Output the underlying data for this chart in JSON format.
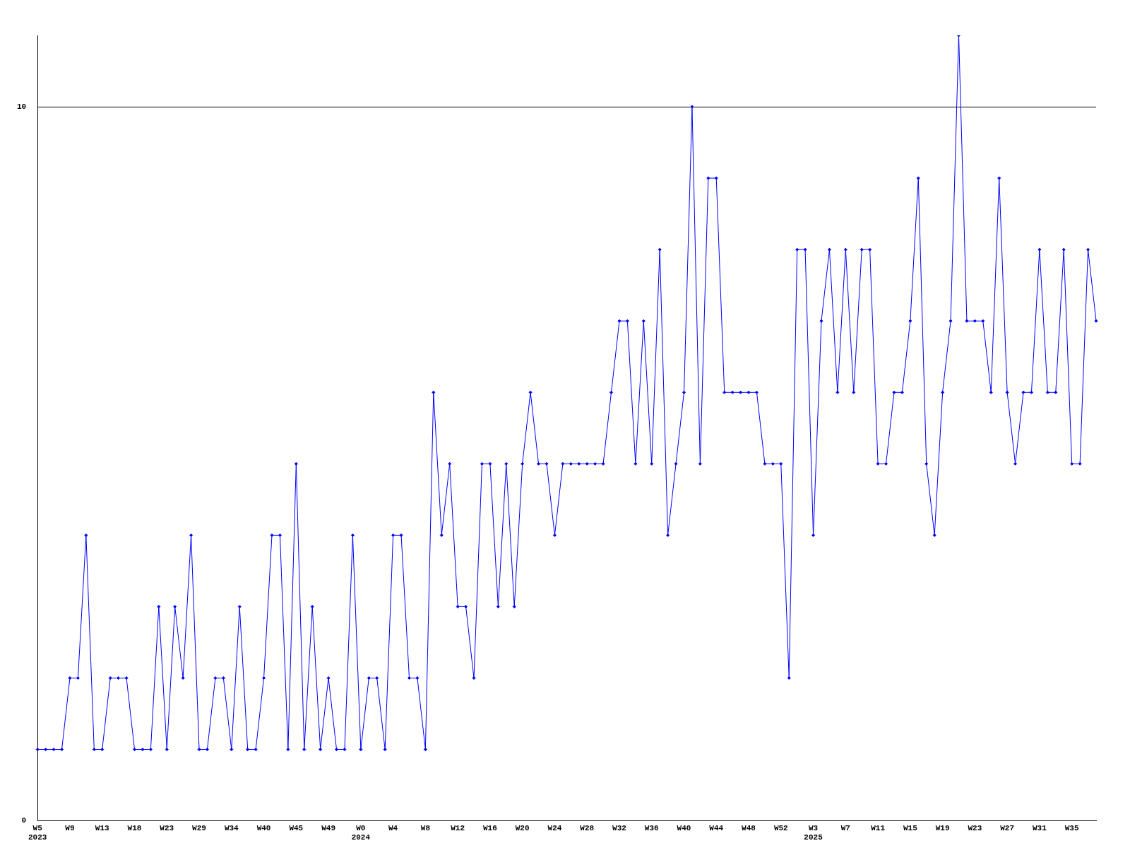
{
  "chart_data": {
    "type": "line",
    "categories": [
      "W5\n2023",
      null,
      null,
      null,
      "W9",
      null,
      null,
      null,
      "W13",
      null,
      null,
      null,
      "W18",
      null,
      null,
      null,
      "W23",
      null,
      null,
      null,
      "W29",
      null,
      null,
      null,
      "W34",
      null,
      null,
      null,
      "W40",
      null,
      null,
      null,
      "W45",
      null,
      null,
      null,
      "W49",
      null,
      null,
      null,
      "W0\n2024",
      null,
      null,
      null,
      "W4",
      null,
      null,
      null,
      "W8",
      null,
      null,
      null,
      "W12",
      null,
      null,
      null,
      "W16",
      null,
      null,
      null,
      "W20",
      null,
      null,
      null,
      "W24",
      null,
      null,
      null,
      "W28",
      null,
      null,
      null,
      "W32",
      null,
      null,
      null,
      "W36",
      null,
      null,
      null,
      "W40",
      null,
      null,
      null,
      "W44",
      null,
      null,
      null,
      "W48",
      null,
      null,
      null,
      "W52",
      null,
      null,
      null,
      "W3\n2025",
      null,
      null,
      null,
      "W7",
      null,
      null,
      null,
      "W11",
      null,
      null,
      null,
      "W15",
      null,
      null,
      null,
      "W19",
      null,
      null,
      null,
      "W23",
      null,
      null,
      null,
      "W27",
      null,
      null,
      null,
      "W31",
      null,
      null,
      null,
      "W35",
      null,
      null,
      null
    ],
    "series": [
      {
        "color": "#0000ff",
        "values": [
          1,
          1,
          1,
          1,
          2,
          2,
          4,
          1,
          1,
          2,
          2,
          2,
          1,
          1,
          1,
          3,
          1,
          3,
          2,
          4,
          1,
          1,
          2,
          2,
          1,
          3,
          1,
          1,
          2,
          4,
          4,
          1,
          5,
          1,
          3,
          1,
          2,
          1,
          1,
          4,
          1,
          2,
          2,
          1,
          4,
          4,
          2,
          2,
          1,
          6,
          4,
          5,
          3,
          3,
          2,
          5,
          5,
          3,
          5,
          3,
          5,
          6,
          5,
          5,
          4,
          5,
          5,
          5,
          5,
          5,
          5,
          6,
          7,
          7,
          5,
          7,
          5,
          8,
          4,
          5,
          6,
          10,
          5,
          9,
          9,
          6,
          6,
          6,
          6,
          6,
          5,
          5,
          5,
          2,
          8,
          8,
          4,
          7,
          8,
          6,
          8,
          6,
          8,
          8,
          5,
          5,
          6,
          6,
          7,
          9,
          5,
          4,
          6,
          7,
          11,
          7,
          7,
          7,
          6,
          9,
          6,
          5,
          6,
          6,
          8,
          6,
          6,
          8,
          5,
          5,
          8,
          7
        ]
      }
    ],
    "ylim": [
      0,
      11
    ],
    "yticks": [
      0,
      10
    ],
    "grid": "y",
    "legend": false,
    "marker": "diamond",
    "line_style": "solid"
  }
}
